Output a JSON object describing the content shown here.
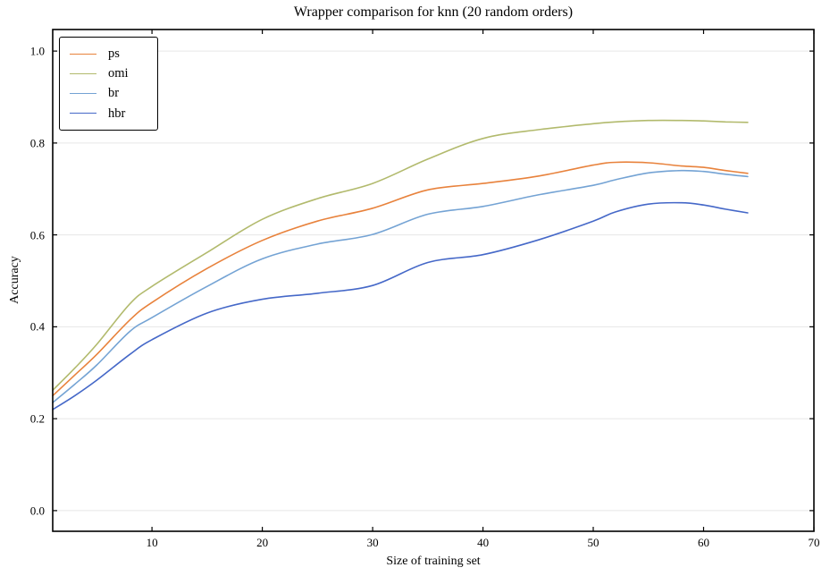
{
  "figure": {
    "background": "#ffffff",
    "spine_color": "#000000",
    "grid_color": "#e6e6e6"
  },
  "chart_data": {
    "type": "line",
    "title": "Wrapper comparison for knn (20 random orders)",
    "xlabel": "Size of training set",
    "ylabel": "Accuracy",
    "xlim": [
      1,
      70
    ],
    "ylim": [
      -0.045,
      1.047
    ],
    "xticks": [
      10,
      20,
      30,
      40,
      50,
      60,
      70
    ],
    "xtick_labels": [
      "10",
      "20",
      "30",
      "40",
      "50",
      "60",
      "70"
    ],
    "yticks": [
      0.0,
      0.2,
      0.4,
      0.6,
      0.8,
      1.0
    ],
    "ytick_labels": [
      "0.0",
      "0.2",
      "0.4",
      "0.6",
      "0.8",
      "1.0"
    ],
    "grid": "horizontal",
    "legend_position": "upper-left",
    "x": [
      1,
      3,
      5,
      8,
      10,
      15,
      20,
      25,
      30,
      35,
      40,
      45,
      50,
      52,
      55,
      58,
      60,
      62,
      64
    ],
    "series": [
      {
        "name": "ps",
        "color": "#E8823C",
        "values": [
          0.25,
          0.295,
          0.34,
          0.415,
          0.453,
          0.527,
          0.588,
          0.63,
          0.658,
          0.698,
          0.712,
          0.728,
          0.752,
          0.758,
          0.757,
          0.75,
          0.747,
          0.74,
          0.734
        ]
      },
      {
        "name": "omi",
        "color": "#B2BA6D",
        "values": [
          0.262,
          0.31,
          0.362,
          0.45,
          0.488,
          0.562,
          0.634,
          0.679,
          0.712,
          0.765,
          0.81,
          0.829,
          0.842,
          0.846,
          0.849,
          0.849,
          0.848,
          0.846,
          0.845
        ]
      },
      {
        "name": "br",
        "color": "#74A3D4",
        "values": [
          0.235,
          0.275,
          0.317,
          0.39,
          0.42,
          0.488,
          0.548,
          0.58,
          0.601,
          0.645,
          0.662,
          0.687,
          0.708,
          0.72,
          0.735,
          0.74,
          0.738,
          0.732,
          0.727
        ]
      },
      {
        "name": "hbr",
        "color": "#4568C8",
        "values": [
          0.22,
          0.25,
          0.284,
          0.34,
          0.372,
          0.43,
          0.46,
          0.473,
          0.49,
          0.54,
          0.557,
          0.589,
          0.63,
          0.65,
          0.667,
          0.67,
          0.665,
          0.656,
          0.648
        ]
      }
    ]
  }
}
